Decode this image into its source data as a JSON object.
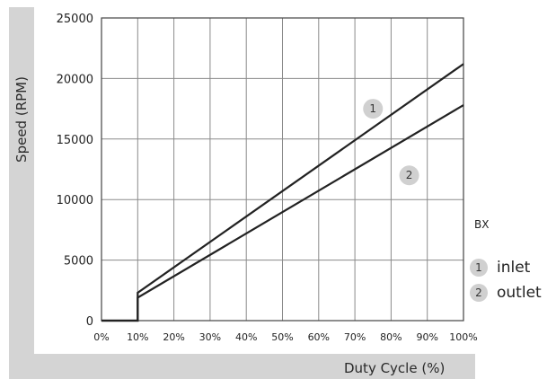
{
  "chart_data": {
    "type": "line",
    "xlabel": "Duty Cycle (%)",
    "ylabel": "Speed (RPM)",
    "xlim": [
      0,
      100
    ],
    "ylim": [
      0,
      25000
    ],
    "x_tick_labels": [
      "0%",
      "10%",
      "20%",
      "30%",
      "40%",
      "50%",
      "60%",
      "70%",
      "80%",
      "90%",
      "100%"
    ],
    "y_tick_labels": [
      "0",
      "5000",
      "10000",
      "15000",
      "20000",
      "25000"
    ],
    "x_ticks": [
      0,
      10,
      20,
      30,
      40,
      50,
      60,
      70,
      80,
      90,
      100
    ],
    "y_ticks": [
      0,
      5000,
      10000,
      15000,
      20000,
      25000
    ],
    "grid": true,
    "legend_title": "BX",
    "legend_position": "right",
    "series": [
      {
        "name": "inlet",
        "marker": "1",
        "color": "#222222",
        "x": [
          0,
          10,
          10,
          100
        ],
        "y": [
          0,
          0,
          2300,
          21200
        ]
      },
      {
        "name": "outlet",
        "marker": "2",
        "color": "#222222",
        "x": [
          0,
          10,
          10,
          100
        ],
        "y": [
          0,
          0,
          1900,
          17800
        ]
      }
    ]
  }
}
